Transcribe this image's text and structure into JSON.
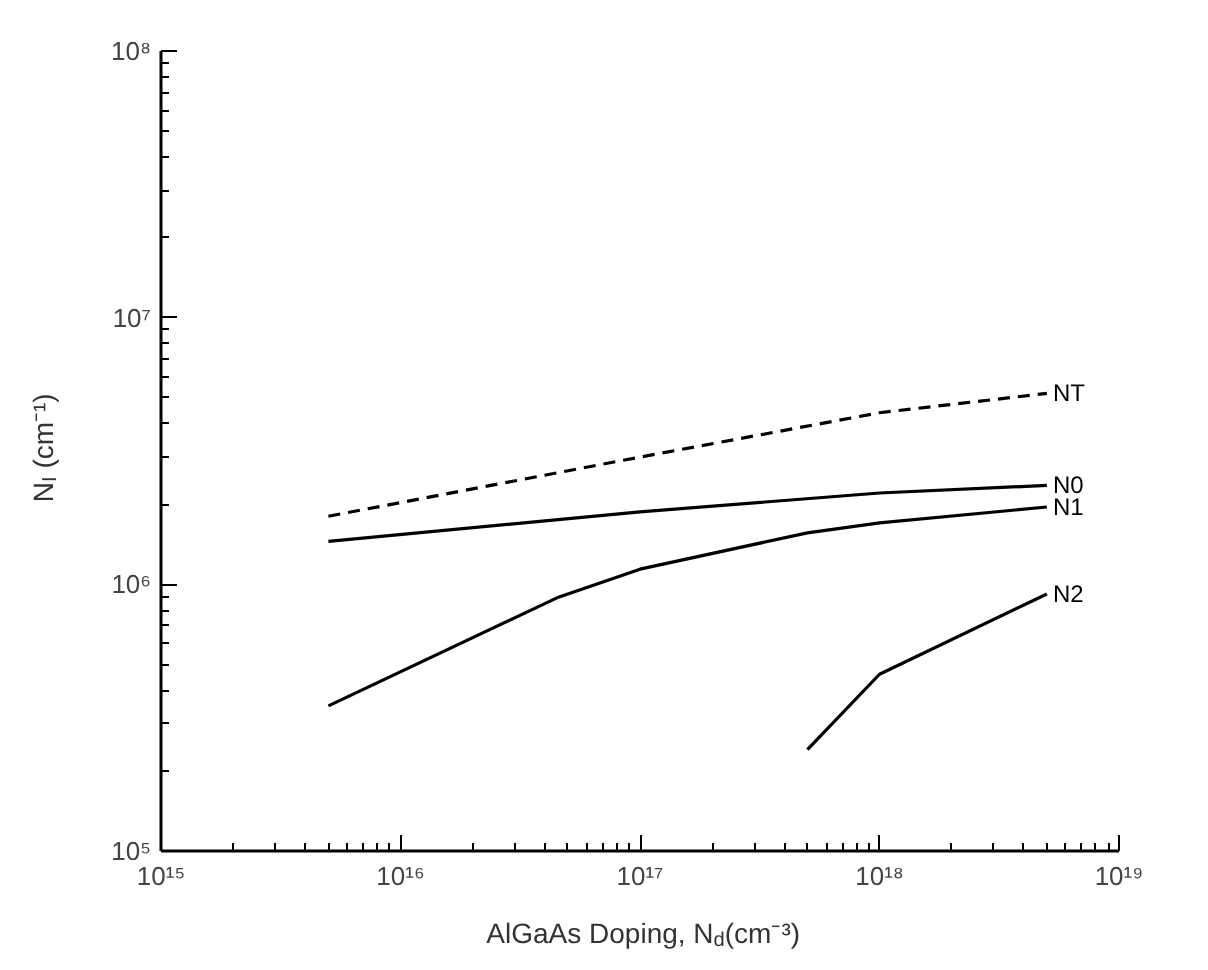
{
  "chart_data": {
    "type": "line",
    "xlabel": "AlGaAs Doping, N$_{d}$(cm⁻³)",
    "ylabel": "N$_{I}$ (cm⁻¹)",
    "log": "xy",
    "grid": false,
    "xlim": [
      1000000000000000.0,
      1e+19
    ],
    "ylim": [
      100000.0,
      100000000.0
    ],
    "xticks": [
      {
        "value": 1000000000000000.0,
        "label": "10¹⁵"
      },
      {
        "value": 1e+16,
        "label": "10¹⁶"
      },
      {
        "value": 1e+17,
        "label": "10¹⁷"
      },
      {
        "value": 1e+18,
        "label": "10¹⁸"
      },
      {
        "value": 1e+19,
        "label": "10¹⁹"
      }
    ],
    "yticks": [
      {
        "value": 100000.0,
        "label": "10⁵"
      },
      {
        "value": 1000000.0,
        "label": "10⁶"
      },
      {
        "value": 10000000.0,
        "label": "10⁷"
      },
      {
        "value": 100000000.0,
        "label": "10⁸"
      }
    ],
    "series": [
      {
        "name": "NT",
        "color": "#000000",
        "line_style": "dashed",
        "x": [
          5000000000000000.0,
          1e+17,
          1e+18,
          5e+18
        ],
        "values": [
          1800000.0,
          3000000.0,
          4400000.0,
          5200000.0
        ]
      },
      {
        "name": "N0",
        "color": "#000000",
        "line_style": "solid",
        "x": [
          5000000000000000.0,
          1e+17,
          1e+18,
          5e+18
        ],
        "values": [
          1450000.0,
          1870000.0,
          2200000.0,
          2350000.0
        ]
      },
      {
        "name": "N1",
        "color": "#000000",
        "line_style": "solid",
        "x": [
          5000000000000000.0,
          4.5e+16,
          1e+17,
          5e+17,
          1e+18,
          5e+18
        ],
        "values": [
          350000.0,
          890000.0,
          1140000.0,
          1560000.0,
          1700000.0,
          1950000.0
        ]
      },
      {
        "name": "N2",
        "color": "#000000",
        "line_style": "solid",
        "x": [
          5e+17,
          1e+18,
          5e+18
        ],
        "values": [
          240000.0,
          460000.0,
          920000.0
        ]
      }
    ]
  }
}
